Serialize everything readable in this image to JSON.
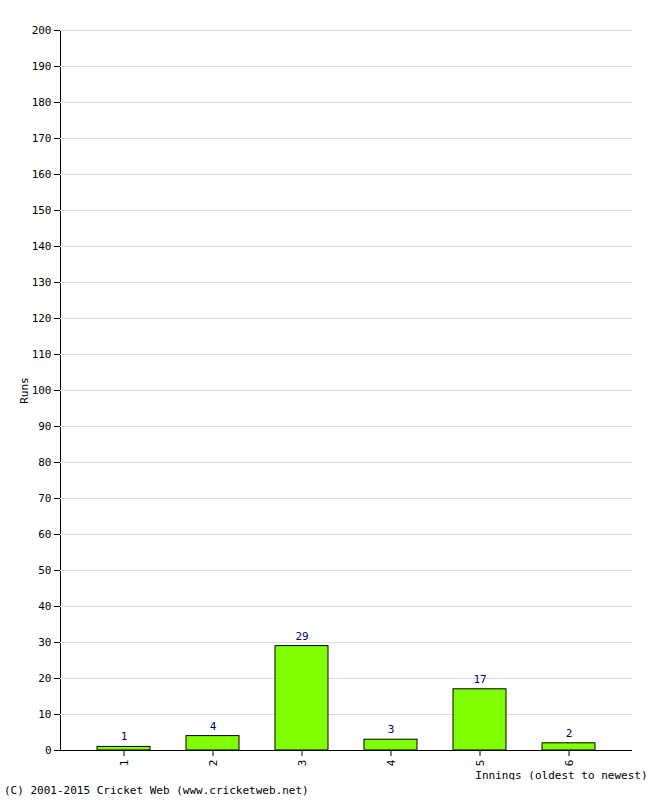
{
  "chart_data": {
    "type": "bar",
    "caption": "(C) 2001-2015 Cricket Web (www.cricketweb.net)",
    "x_label": "Innings (oldest to newest)",
    "y_label": "Runs",
    "categories": [
      "1",
      "2",
      "3",
      "4",
      "5",
      "6"
    ],
    "values": [
      1,
      4,
      29,
      3,
      17,
      2
    ],
    "color": "#80ff00",
    "ylim": [
      0,
      200
    ],
    "yticks": [
      0,
      10,
      20,
      30,
      40,
      50,
      60,
      70,
      80,
      90,
      100,
      110,
      120,
      130,
      140,
      150,
      160,
      170,
      180,
      190,
      200
    ],
    "grid": true,
    "data_labels": true
  }
}
